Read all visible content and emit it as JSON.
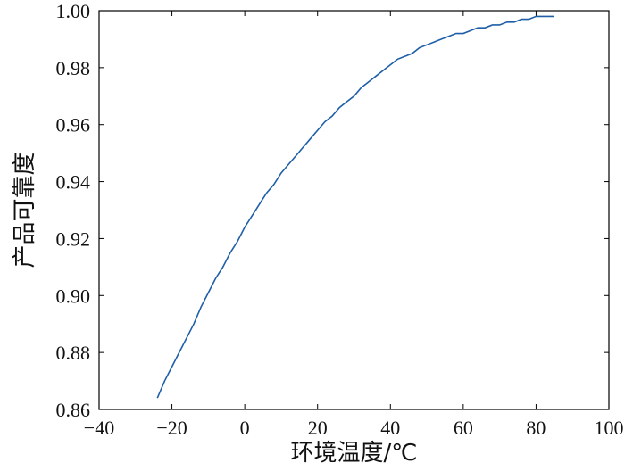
{
  "chart_data": {
    "type": "line",
    "xlabel": "环境温度/℃",
    "ylabel": "产品可靠度",
    "xlim": [
      -40,
      100
    ],
    "ylim": [
      0.86,
      1.0
    ],
    "xticks": [
      -40,
      -20,
      0,
      20,
      40,
      60,
      80,
      100
    ],
    "yticks": [
      0.86,
      0.88,
      0.9,
      0.92,
      0.94,
      0.96,
      0.98,
      1.0
    ],
    "xtick_labels": [
      "−40",
      "−20",
      "0",
      "20",
      "40",
      "60",
      "80",
      "100"
    ],
    "ytick_labels": [
      "0.86",
      "0.88",
      "0.90",
      "0.92",
      "0.94",
      "0.96",
      "0.98",
      "1.00"
    ],
    "grid": false,
    "line_color": "#1f5fa8",
    "series": [
      {
        "x": [
          -24,
          -22,
          -20,
          -18,
          -16,
          -14,
          -12,
          -10,
          -8,
          -6,
          -4,
          -2,
          0,
          2,
          4,
          6,
          8,
          10,
          12,
          14,
          16,
          18,
          20,
          22,
          24,
          26,
          28,
          30,
          32,
          34,
          36,
          38,
          40,
          42,
          44,
          46,
          48,
          50,
          52,
          54,
          56,
          58,
          60,
          62,
          64,
          66,
          68,
          70,
          72,
          74,
          76,
          78,
          80,
          82,
          85
        ],
        "y": [
          0.864,
          0.87,
          0.875,
          0.88,
          0.885,
          0.89,
          0.896,
          0.901,
          0.906,
          0.91,
          0.915,
          0.919,
          0.924,
          0.928,
          0.932,
          0.936,
          0.939,
          0.943,
          0.946,
          0.949,
          0.952,
          0.955,
          0.958,
          0.961,
          0.963,
          0.966,
          0.968,
          0.97,
          0.973,
          0.975,
          0.977,
          0.979,
          0.981,
          0.983,
          0.984,
          0.985,
          0.987,
          0.988,
          0.989,
          0.99,
          0.991,
          0.992,
          0.992,
          0.993,
          0.994,
          0.994,
          0.995,
          0.995,
          0.996,
          0.996,
          0.997,
          0.997,
          0.998,
          0.998,
          0.998
        ]
      }
    ]
  }
}
